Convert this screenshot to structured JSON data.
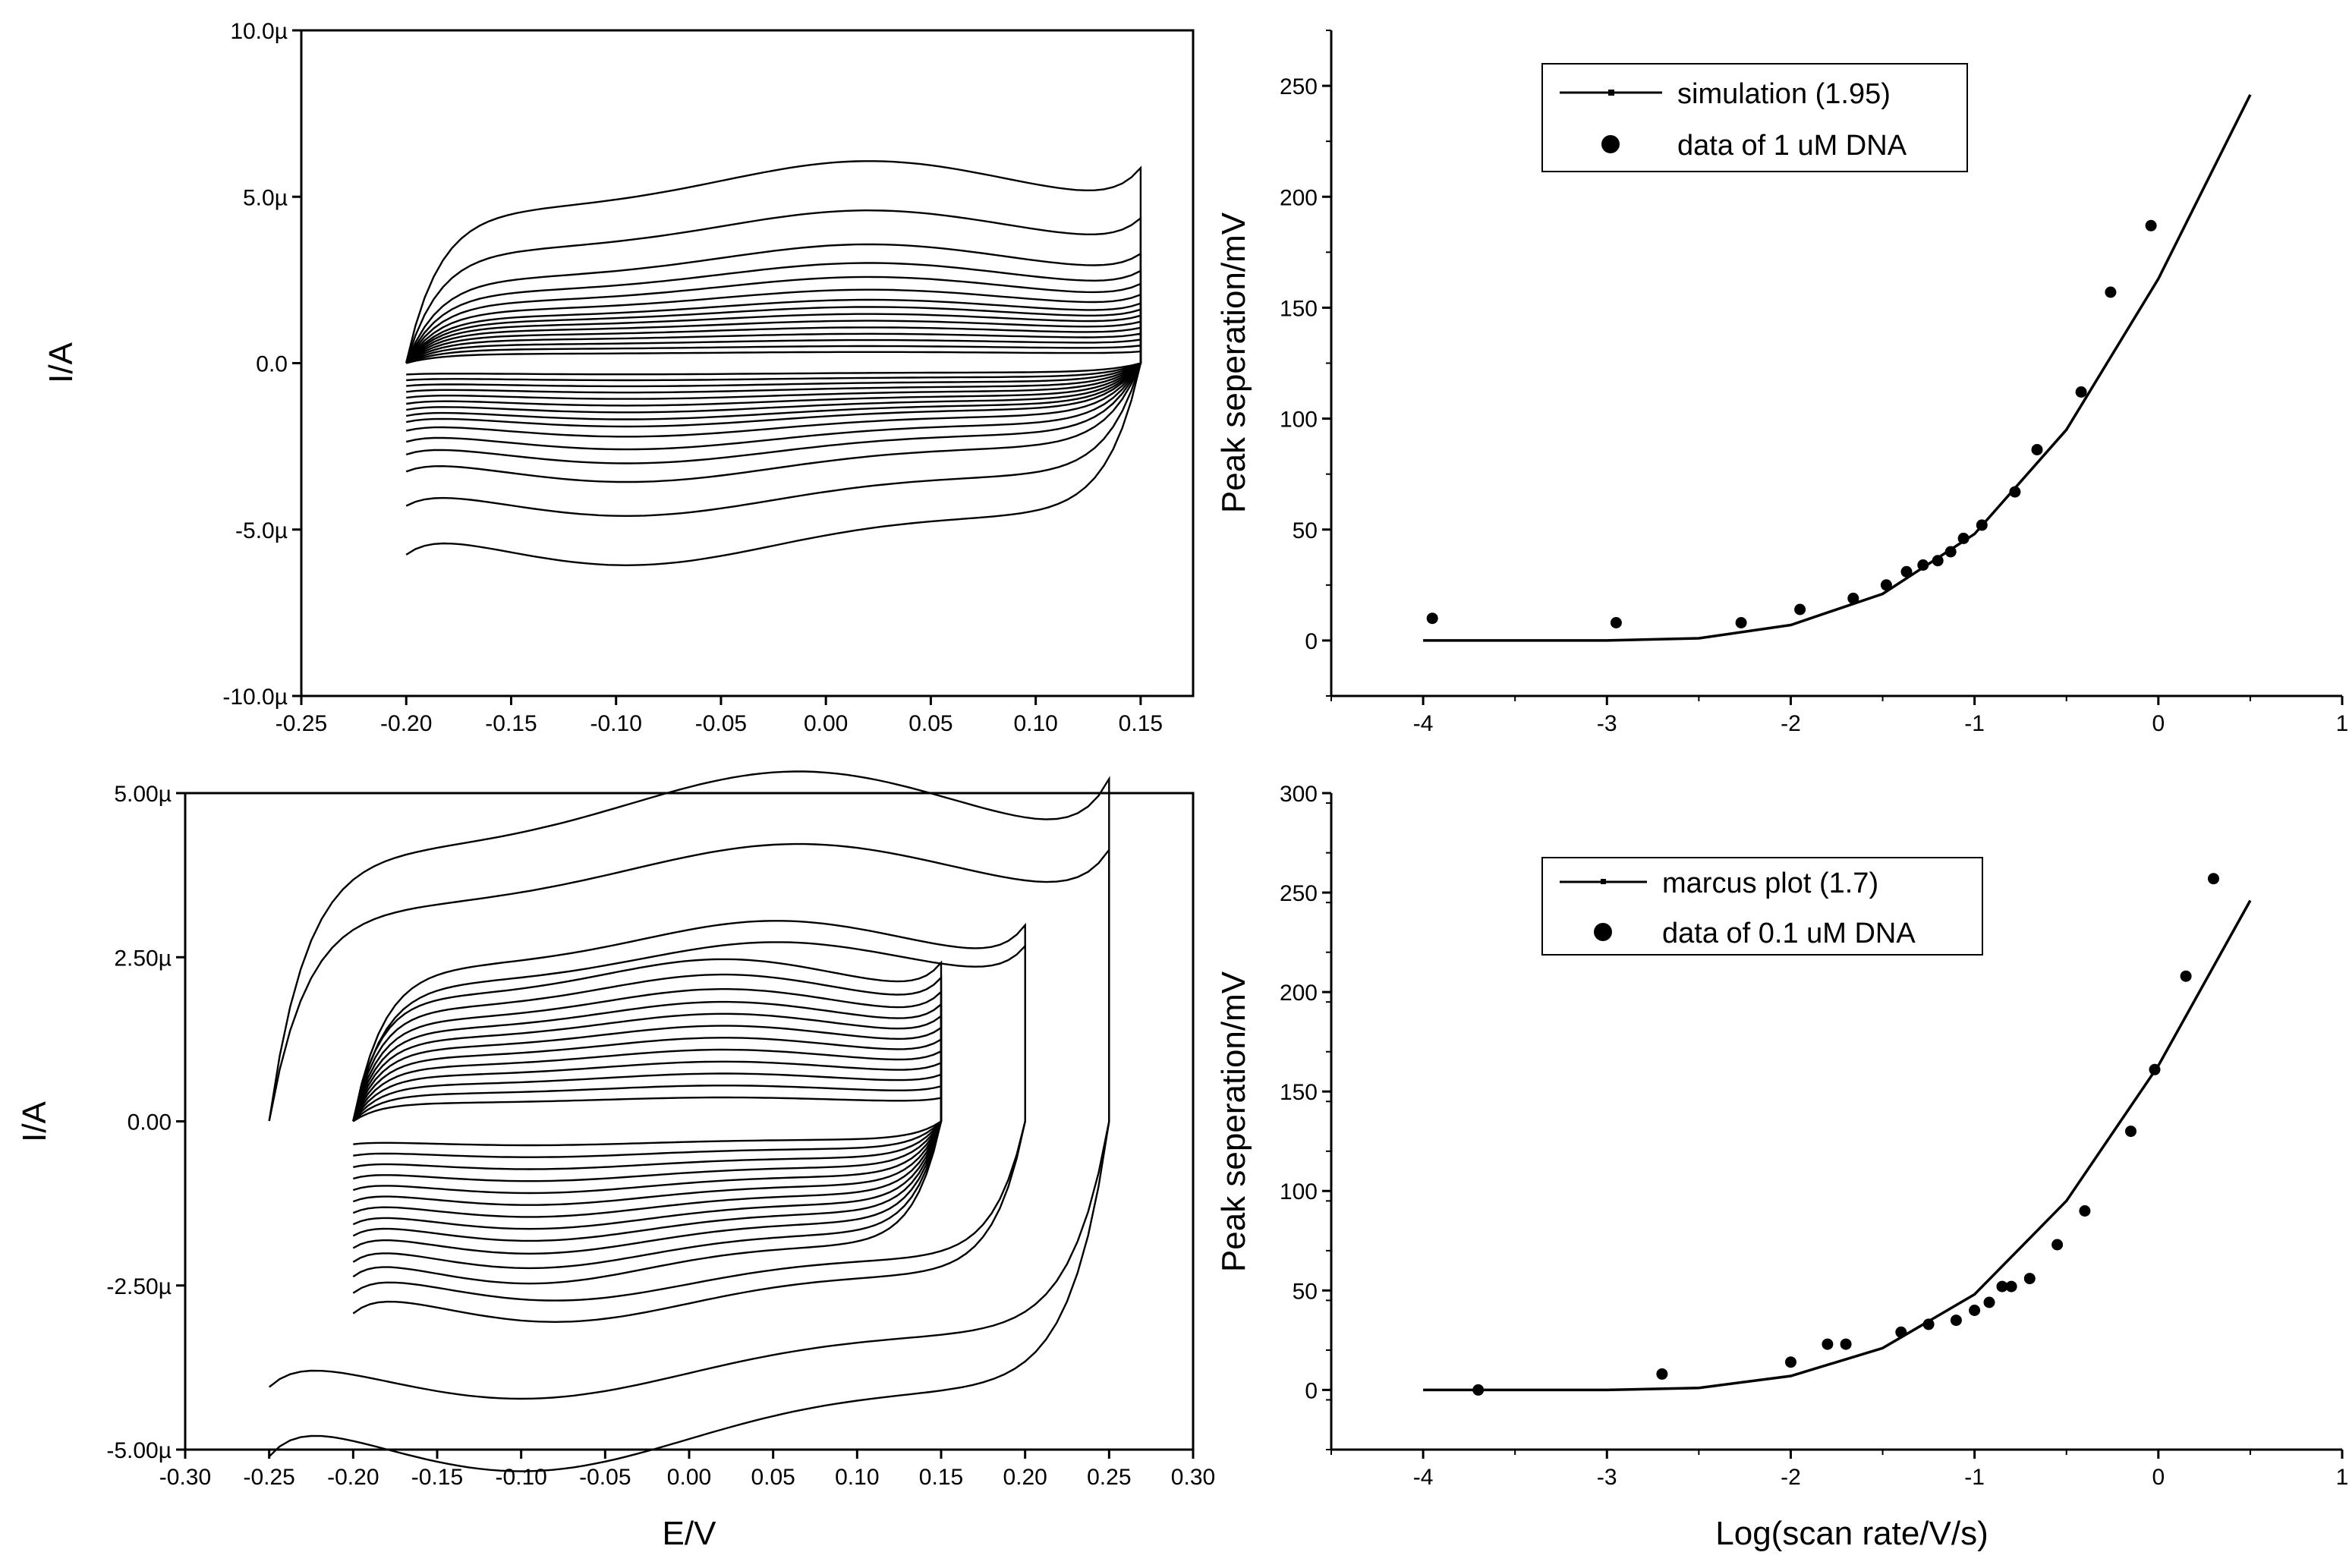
{
  "chart_data": [
    {
      "id": "cv-1uM",
      "type": "line",
      "ylabel": "I/A",
      "xlabel": "",
      "xlim": [
        -0.25,
        0.175
      ],
      "ylim": [
        -10.0,
        10.0
      ],
      "xticks": [
        "-0.25",
        "-0.20",
        "-0.15",
        "-0.10",
        "-0.05",
        "0.00",
        "0.05",
        "0.10",
        "0.15"
      ],
      "yticks": [
        "10.0µ",
        "5.0µ",
        "0.0",
        "-5.0µ",
        "-10.0µ"
      ],
      "y_unit": "µA",
      "cv_params": {
        "e1": -0.2,
        "e2": 0.15,
        "amps": [
          0.28,
          0.42,
          0.56,
          0.7,
          0.84,
          0.98,
          1.12,
          1.26,
          1.4,
          1.6,
          1.85,
          2.15,
          2.55,
          3.4,
          4.6
        ],
        "peak_scale": [
          0.2,
          0.22,
          0.24,
          0.26,
          0.28,
          0.3,
          0.32,
          0.34,
          0.36,
          0.38,
          0.4,
          0.4,
          0.4,
          0.35,
          0.32
        ]
      }
    },
    {
      "id": "sep-1uM",
      "type": "scatter",
      "ylabel": "Peak seperation/mV",
      "xlabel": "",
      "xlim": [
        -4.5,
        1.0
      ],
      "ylim": [
        -25,
        275
      ],
      "xticks": [
        "-4",
        "-3",
        "-2",
        "-1",
        "0",
        "1"
      ],
      "yticks": [
        "0",
        "50",
        "100",
        "150",
        "200",
        "250"
      ],
      "series": [
        {
          "name": "simulation (1.95)",
          "kind": "line",
          "x": [
            -4.0,
            -3.5,
            -3.0,
            -2.5,
            -2.0,
            -1.5,
            -1.0,
            -0.5,
            0.0,
            0.5
          ],
          "y": [
            0,
            0,
            0,
            1,
            7,
            21,
            48,
            95,
            163,
            246
          ]
        },
        {
          "name": "data of 1 uM DNA",
          "kind": "points",
          "x": [
            -3.95,
            -2.95,
            -2.27,
            -1.95,
            -1.66,
            -1.48,
            -1.37,
            -1.28,
            -1.2,
            -1.13,
            -1.06,
            -0.96,
            -0.78,
            -0.66,
            -0.42,
            -0.26,
            -0.04
          ],
          "y": [
            10,
            8,
            8,
            14,
            19,
            25,
            31,
            34,
            36,
            40,
            46,
            52,
            67,
            86,
            112,
            157,
            187
          ]
        }
      ]
    },
    {
      "id": "cv-0.1uM",
      "type": "line",
      "ylabel": "I/A",
      "xlabel": "E/V",
      "xlim": [
        -0.3,
        0.3
      ],
      "ylim": [
        -5.0,
        5.0
      ],
      "xticks": [
        "-0.30",
        "-0.25",
        "-0.20",
        "-0.15",
        "-0.10",
        "-0.05",
        "0.00",
        "0.05",
        "0.10",
        "0.15",
        "0.20",
        "0.25",
        "0.30"
      ],
      "yticks": [
        "5.00µ",
        "2.50µ",
        "0.00",
        "-2.50µ",
        "-5.00µ"
      ],
      "y_unit": "µA",
      "cv_groups": [
        {
          "e1": -0.2,
          "e2": 0.15,
          "amps": [
            0.28,
            0.42,
            0.56,
            0.7,
            0.84,
            0.98,
            1.12,
            1.26,
            1.4,
            1.55,
            1.72,
            1.9
          ]
        },
        {
          "e1": -0.2,
          "e2": 0.2,
          "amps": [
            2.1,
            2.35
          ]
        },
        {
          "e1": -0.25,
          "e2": 0.25,
          "amps": [
            3.25,
            4.1
          ]
        }
      ]
    },
    {
      "id": "sep-0.1uM",
      "type": "scatter",
      "ylabel": "Peak seperation/mV",
      "xlabel": "Log(scan rate/V/s)",
      "xlim": [
        -4.5,
        1.0
      ],
      "ylim": [
        -30,
        300
      ],
      "xticks": [
        "-4",
        "-3",
        "-2",
        "-1",
        "0",
        "1"
      ],
      "yticks": [
        "0",
        "50",
        "100",
        "150",
        "200",
        "250",
        "300"
      ],
      "series": [
        {
          "name": "marcus plot (1.7)",
          "kind": "line",
          "x": [
            -4.0,
            -3.5,
            -3.0,
            -2.5,
            -2.0,
            -1.5,
            -1.0,
            -0.5,
            0.0,
            0.5
          ],
          "y": [
            0,
            0,
            0,
            1,
            7,
            21,
            48,
            95,
            163,
            246
          ]
        },
        {
          "name": "data of 0.1 uM DNA",
          "kind": "points",
          "x": [
            -3.7,
            -2.7,
            -2.0,
            -1.8,
            -1.7,
            -1.4,
            -1.25,
            -1.1,
            -1.0,
            -0.92,
            -0.85,
            -0.8,
            -0.7,
            -0.55,
            -0.4,
            -0.15,
            0.15,
            0.3,
            -0.02
          ],
          "y": [
            0,
            8,
            14,
            23,
            23,
            29,
            33,
            35,
            40,
            44,
            52,
            52,
            56,
            73,
            90,
            130,
            208,
            257,
            161
          ]
        }
      ]
    }
  ]
}
